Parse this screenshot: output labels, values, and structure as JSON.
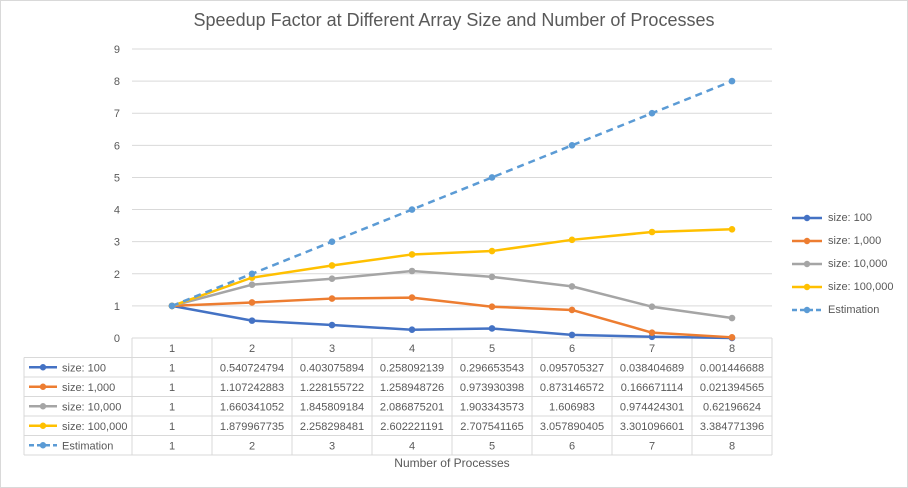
{
  "chart_data": {
    "type": "line",
    "title": "Speedup Factor at Different Array Size and Number of Processes",
    "xlabel": "Number of Processes",
    "ylabel": "",
    "categories": [
      "1",
      "2",
      "3",
      "4",
      "5",
      "6",
      "7",
      "8"
    ],
    "ylim": [
      0,
      9
    ],
    "yticks": [
      "0",
      "1",
      "2",
      "3",
      "4",
      "5",
      "6",
      "7",
      "8",
      "9"
    ],
    "grid": true,
    "legend_position": "right",
    "series": [
      {
        "name": "size: 100",
        "color": "#4472c4",
        "dashed": false,
        "values": [
          1,
          0.540724794,
          0.403075894,
          0.258092139,
          0.296653543,
          0.095705327,
          0.038404689,
          0.001446688
        ],
        "labels": [
          "1",
          "0.540724794",
          "0.403075894",
          "0.258092139",
          "0.296653543",
          "0.095705327",
          "0.038404689",
          "0.001446688"
        ]
      },
      {
        "name": "size: 1,000",
        "color": "#ed7d31",
        "dashed": false,
        "values": [
          1,
          1.107242883,
          1.228155722,
          1.258948726,
          0.973930398,
          0.873146572,
          0.166671114,
          0.021394565
        ],
        "labels": [
          "1",
          "1.107242883",
          "1.228155722",
          "1.258948726",
          "0.973930398",
          "0.873146572",
          "0.166671114",
          "0.021394565"
        ]
      },
      {
        "name": "size: 10,000",
        "color": "#a5a5a5",
        "dashed": false,
        "values": [
          1,
          1.660341052,
          1.845809184,
          2.086875201,
          1.903343573,
          1.606983,
          0.974424301,
          0.62196624
        ],
        "labels": [
          "1",
          "1.660341052",
          "1.845809184",
          "2.086875201",
          "1.903343573",
          "1.606983",
          "0.974424301",
          "0.62196624"
        ]
      },
      {
        "name": "size: 100,000",
        "color": "#ffc000",
        "dashed": false,
        "values": [
          1,
          1.879967735,
          2.258298481,
          2.602221191,
          2.707541165,
          3.057890405,
          3.301096601,
          3.384771396
        ],
        "labels": [
          "1",
          "1.879967735",
          "2.258298481",
          "2.602221191",
          "2.707541165",
          "3.057890405",
          "3.301096601",
          "3.384771396"
        ]
      },
      {
        "name": "Estimation",
        "color": "#5b9bd5",
        "dashed": true,
        "values": [
          1,
          2,
          3,
          4,
          5,
          6,
          7,
          8
        ],
        "labels": [
          "1",
          "2",
          "3",
          "4",
          "5",
          "6",
          "7",
          "8"
        ]
      }
    ]
  }
}
